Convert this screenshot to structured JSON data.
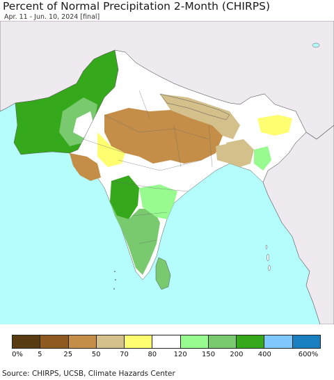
{
  "header": {
    "title": "Percent of Normal Precipitation 2-Month (CHIRPS)",
    "subtitle": "Apr. 11 - Jun. 10, 2024 [final]"
  },
  "legend": {
    "colors": [
      "#5a3c12",
      "#8e5a22",
      "#c48e48",
      "#d3c08a",
      "#fffe70",
      "#ffffff",
      "#97fb8f",
      "#79c96e",
      "#35a91b",
      "#80c7fb",
      "#1a7fbe"
    ],
    "ticks": [
      "0%",
      "5",
      "25",
      "50",
      "70",
      "80",
      "120",
      "150",
      "200",
      "400",
      "600%"
    ]
  },
  "footer": {
    "source": "Source: CHIRPS, UCSB, Climate Hazards Center"
  },
  "map_colors": {
    "ocean": "#b5fcfc",
    "outside": "#eeeaf0",
    "border": "#333333"
  }
}
